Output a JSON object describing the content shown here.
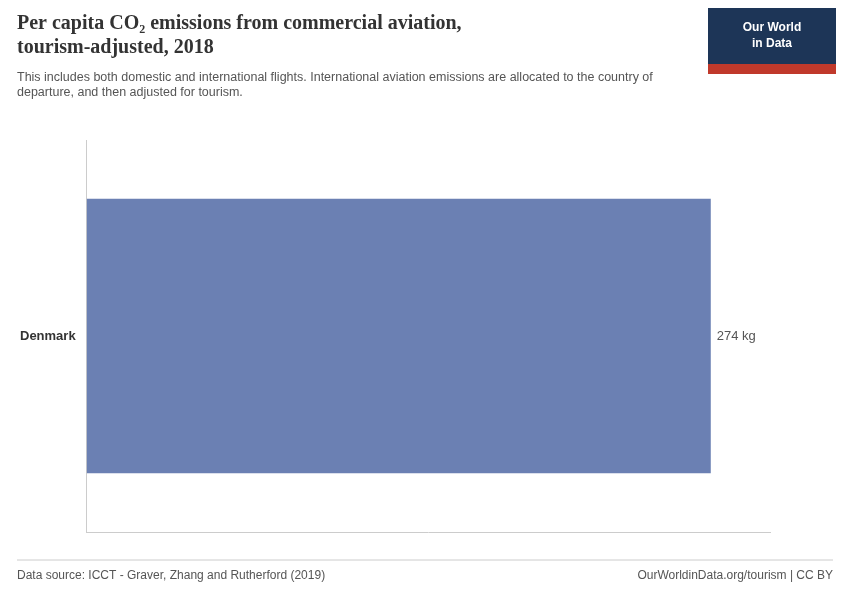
{
  "chart_data": {
    "type": "bar",
    "orientation": "horizontal",
    "title": [
      "Per capita CO₂ emissions from commercial aviation,",
      "tourism-adjusted, 2018"
    ],
    "subtitle": "This includes both domestic and international flights. International aviation emissions are allocated to the country of\ndeparture, and then adjusted for tourism.",
    "categories": [
      "Denmark"
    ],
    "values": [
      274
    ],
    "value_labels": [
      "274 kg"
    ],
    "data_labels": true,
    "color": "#6b80b3",
    "xlim": [
      0,
      300
    ],
    "tick_labels": "y",
    "grid": false,
    "annotations": [
      "Our World\nin Data",
      "Data source: ICCT - Graver, Zhang and Rutherford (2019)",
      "OurWorldinData.org/tourism | CC BY"
    ]
  }
}
